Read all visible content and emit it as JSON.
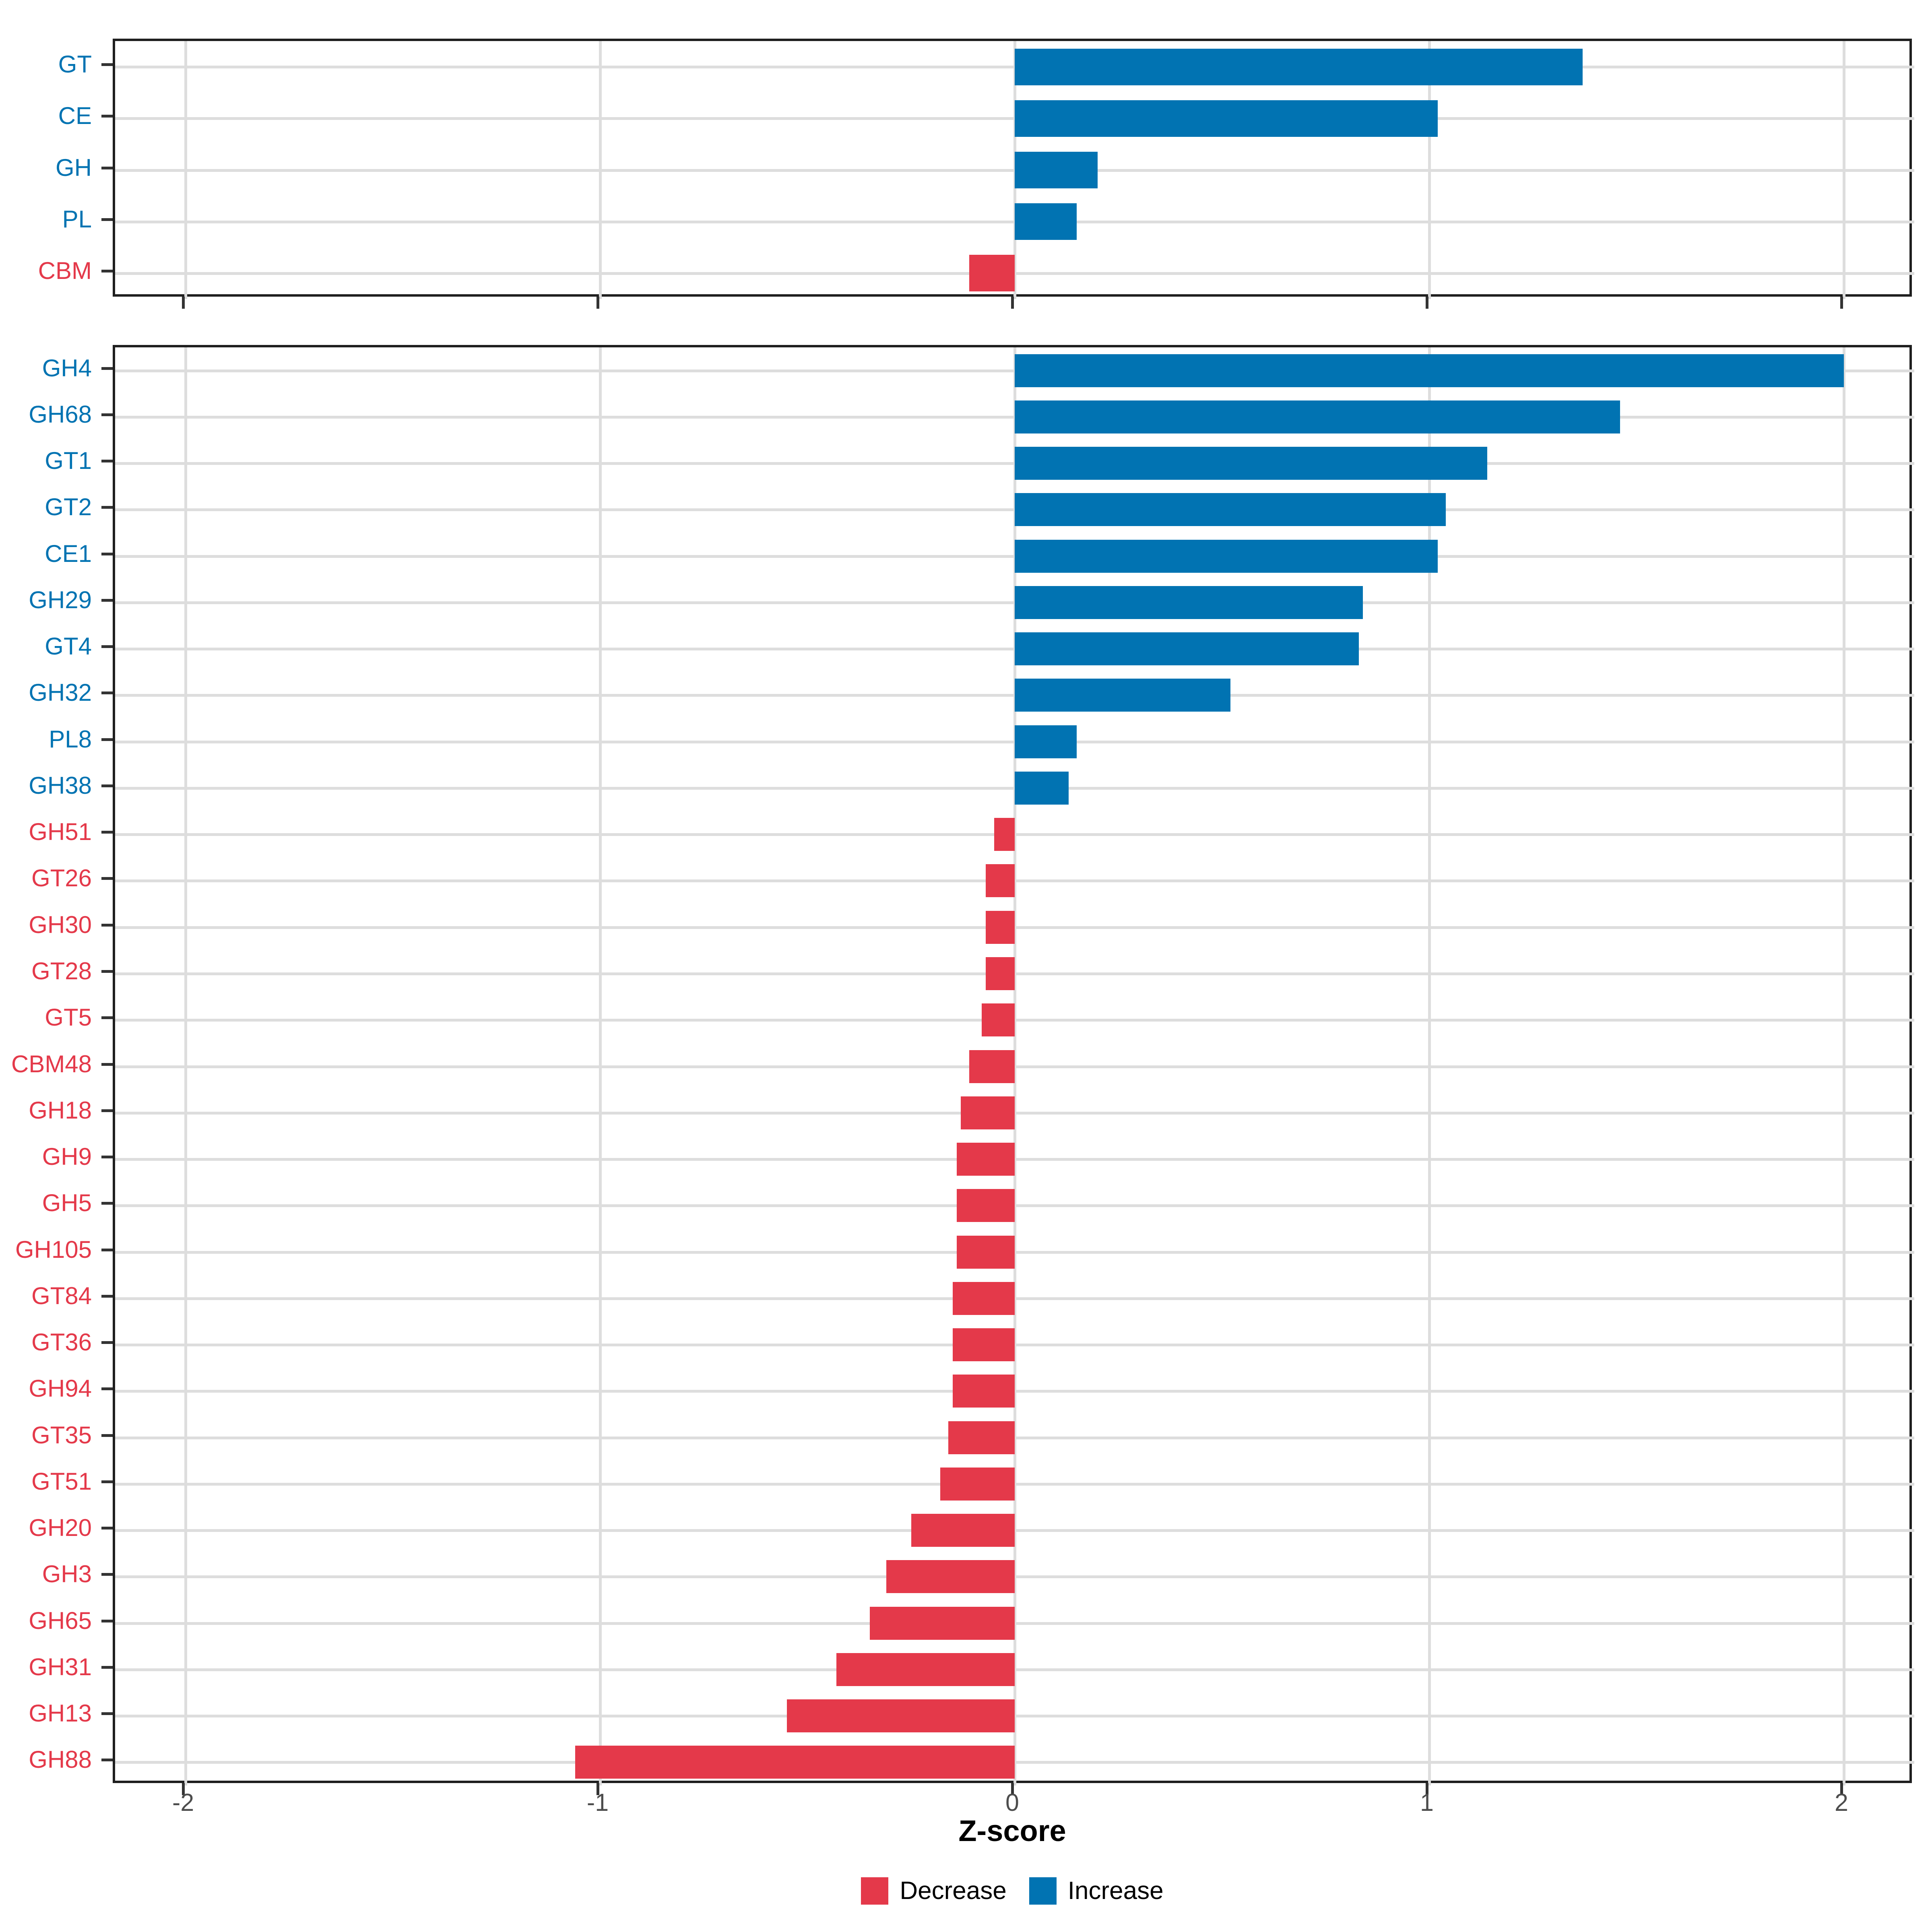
{
  "chart_data": {
    "type": "bar",
    "orientation": "horizontal",
    "xlabel": "Z-score",
    "xlim": [
      -2.17,
      2.17
    ],
    "x_ticks": [
      -2,
      -1,
      0,
      1,
      2
    ],
    "x_tick_labels": [
      "-2",
      "-1",
      "0",
      "1",
      "2"
    ],
    "grid": true,
    "legend_position": "bottom",
    "colors": {
      "decrease": "#E4394A",
      "increase": "#0173B2"
    },
    "panels": [
      {
        "name": "cazyme-class-panel",
        "categories": [
          "GT",
          "CE",
          "GH",
          "PL",
          "CBM"
        ],
        "values": [
          1.37,
          1.02,
          0.2,
          0.15,
          -0.11
        ]
      },
      {
        "name": "cazyme-family-panel",
        "categories": [
          "GH4",
          "GH68",
          "GT1",
          "GT2",
          "CE1",
          "GH29",
          "GT4",
          "GH32",
          "PL8",
          "GH38",
          "GH51",
          "GT26",
          "GH30",
          "GT28",
          "GT5",
          "CBM48",
          "GH18",
          "GH9",
          "GH5",
          "GH105",
          "GT84",
          "GT36",
          "GH94",
          "GT35",
          "GT51",
          "GH20",
          "GH3",
          "GH65",
          "GH31",
          "GH13",
          "GH88"
        ],
        "values": [
          2.0,
          1.46,
          1.14,
          1.04,
          1.02,
          0.84,
          0.83,
          0.52,
          0.15,
          0.13,
          -0.05,
          -0.07,
          -0.07,
          -0.07,
          -0.08,
          -0.11,
          -0.13,
          -0.14,
          -0.14,
          -0.14,
          -0.15,
          -0.15,
          -0.15,
          -0.16,
          -0.18,
          -0.25,
          -0.31,
          -0.35,
          -0.43,
          -0.55,
          -1.06
        ]
      }
    ]
  },
  "axis": {
    "title": "Z-score"
  },
  "legend": {
    "decrease_label": "Decrease",
    "increase_label": "Increase"
  }
}
